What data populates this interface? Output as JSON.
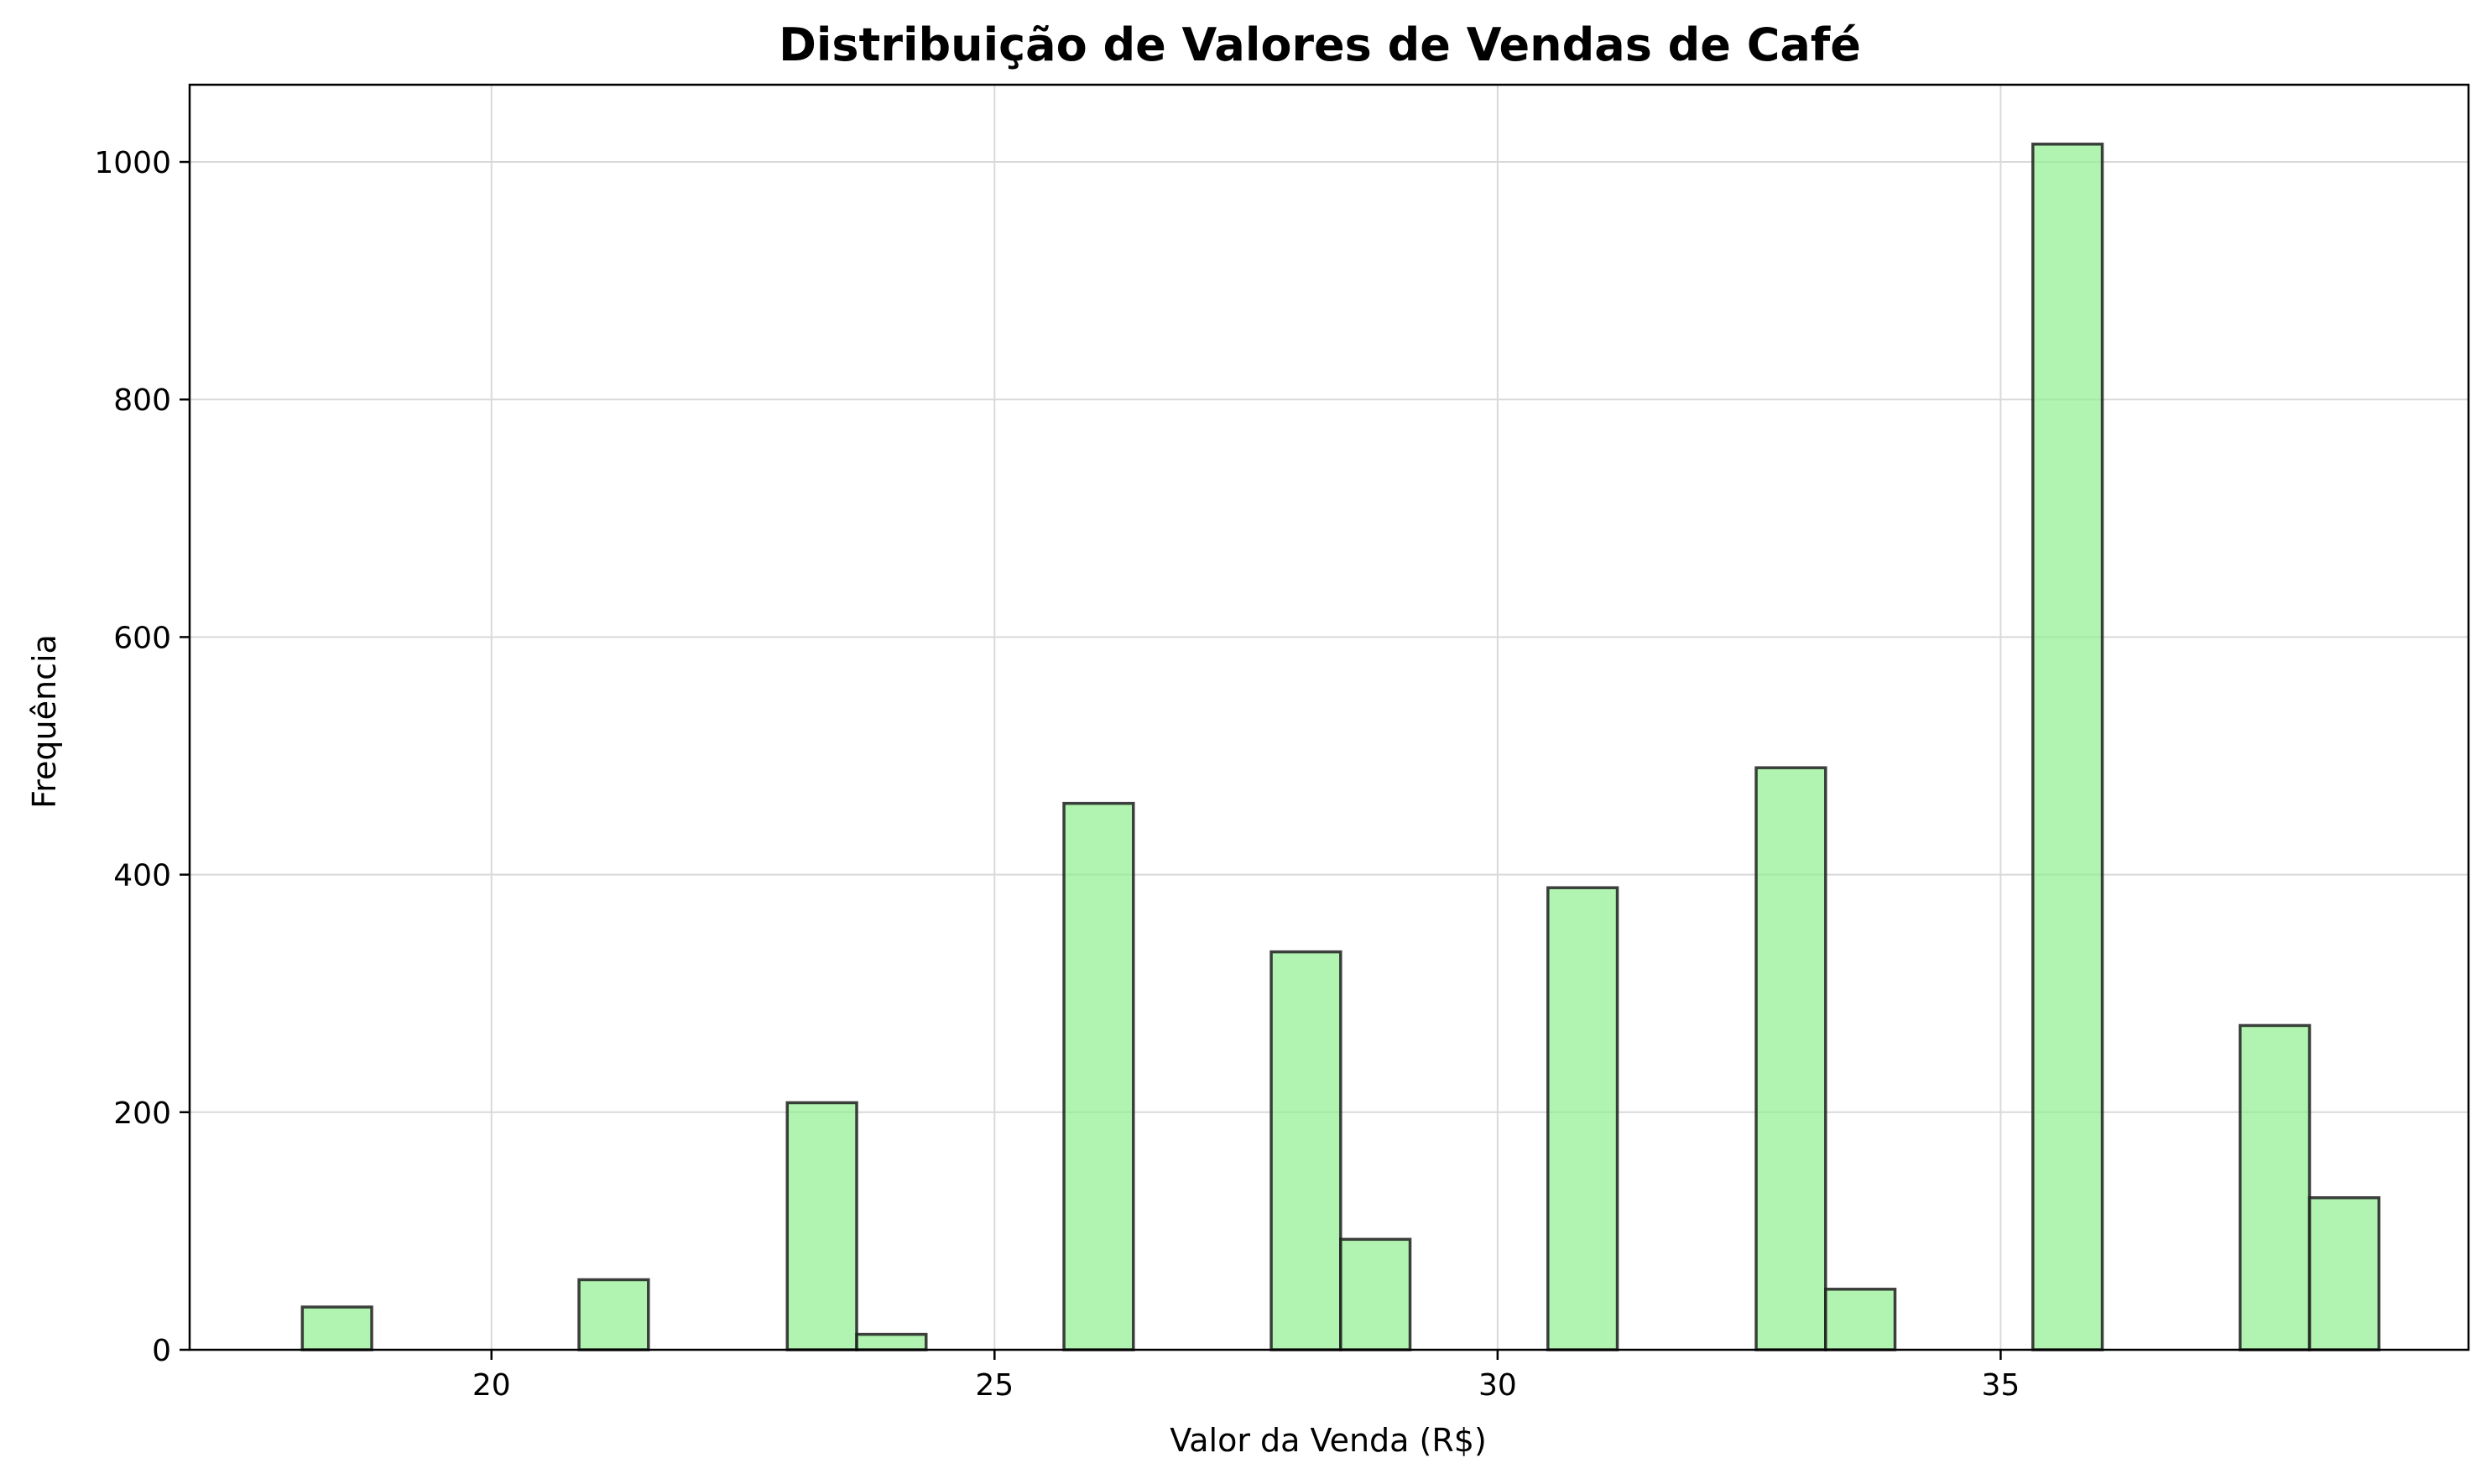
{
  "chart_data": {
    "type": "bar",
    "title": "Distribuição de Valores de Vendas de Café",
    "xlabel": "Valor da Venda (R$)",
    "ylabel": "Frequência",
    "xlim": [
      17.0,
      39.65
    ],
    "ylim": [
      0,
      1065
    ],
    "grid": true,
    "bar_color": "#90EE90",
    "edge_color": "#000000",
    "bin_width": 0.688,
    "x_ticks": [
      20,
      25,
      30,
      35
    ],
    "y_ticks": [
      0,
      200,
      400,
      600,
      800,
      1000
    ],
    "bins": [
      {
        "x0": 18.12,
        "x1": 18.81,
        "count": 36
      },
      {
        "x0": 20.87,
        "x1": 21.56,
        "count": 59
      },
      {
        "x0": 22.94,
        "x1": 23.63,
        "count": 208
      },
      {
        "x0": 23.63,
        "x1": 24.32,
        "count": 13
      },
      {
        "x0": 25.69,
        "x1": 26.38,
        "count": 460
      },
      {
        "x0": 27.75,
        "x1": 28.44,
        "count": 335
      },
      {
        "x0": 28.44,
        "x1": 29.13,
        "count": 93
      },
      {
        "x0": 30.5,
        "x1": 31.19,
        "count": 389
      },
      {
        "x0": 32.57,
        "x1": 33.26,
        "count": 490
      },
      {
        "x0": 33.26,
        "x1": 33.95,
        "count": 51
      },
      {
        "x0": 35.32,
        "x1": 36.01,
        "count": 1015
      },
      {
        "x0": 37.38,
        "x1": 38.07,
        "count": 273
      },
      {
        "x0": 38.07,
        "x1": 38.76,
        "count": 128
      }
    ]
  }
}
